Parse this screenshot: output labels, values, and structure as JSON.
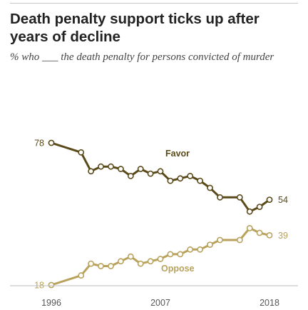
{
  "header": {
    "title": "Death penalty support ticks up after years of decline",
    "subtitle": "% who ___ the death penalty for persons convicted of murder"
  },
  "chart_data": {
    "type": "line",
    "title": "Death penalty support ticks up after years of decline",
    "subtitle": "% who ___ the death penalty for persons convicted of murder",
    "x_tick_labels": [
      "1996",
      "2007",
      "2018"
    ],
    "xlim": [
      1996,
      2018
    ],
    "ylim": [
      18,
      78
    ],
    "grid": false,
    "colors": {
      "favor": "#5a4a1a",
      "oppose": "#b8a25c",
      "axis": "#bbbbbb",
      "tick_text": "#555555"
    },
    "series": [
      {
        "name": "Favor",
        "color": "#5a4a1a",
        "x": [
          1996,
          1999,
          2000,
          2001,
          2002,
          2003,
          2004,
          2005,
          2006,
          2007,
          2008,
          2009,
          2010,
          2011,
          2012,
          2013,
          2015,
          2016,
          2017,
          2018
        ],
        "values": [
          78,
          74,
          66,
          68,
          68,
          67,
          64,
          67,
          65,
          66,
          62,
          63,
          64,
          62,
          59,
          55,
          55,
          49,
          51,
          54
        ],
        "end_labels": {
          "start": "78",
          "end": "54"
        }
      },
      {
        "name": "Oppose",
        "color": "#b8a25c",
        "x": [
          1996,
          1999,
          2000,
          2001,
          2002,
          2003,
          2004,
          2005,
          2006,
          2007,
          2008,
          2009,
          2010,
          2011,
          2012,
          2013,
          2015,
          2016,
          2017,
          2018
        ],
        "values": [
          18,
          22,
          27,
          26,
          26,
          28,
          30,
          27,
          28,
          29,
          31,
          31,
          33,
          33,
          35,
          37,
          37,
          42,
          40,
          39
        ],
        "end_labels": {
          "start": "18",
          "end": "39"
        }
      }
    ]
  }
}
